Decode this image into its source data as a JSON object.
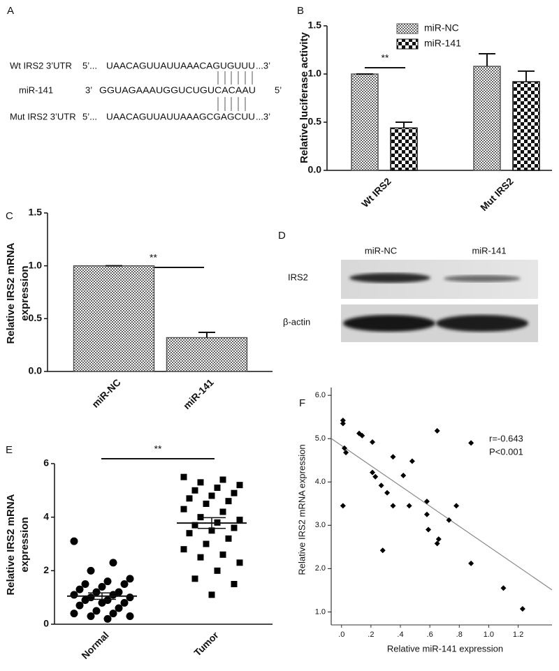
{
  "sequence_panel": {
    "panel": "A",
    "rows": [
      {
        "label": "Wt IRS2 3’UTR",
        "start": "5’...",
        "sequence": "UAACAGUUAUUAAACAGUGUUU",
        "end": "...3’"
      },
      {
        "label": "miR-141",
        "start": "3’",
        "sequence": "GGUAGAAAUGGUCUGUCACAAU",
        "end": "5’"
      },
      {
        "label": "Mut IRS2 3’UTR",
        "start": "5’...",
        "sequence": "UAACAGUUAUUAAAGCGAGCUU",
        "end": "...3’"
      }
    ]
  },
  "blot_panel": {
    "panel": "D",
    "lanes": [
      "miR-NC",
      "miR-141"
    ],
    "proteins": [
      "IRS2",
      "β-actin"
    ]
  },
  "chart_data": [
    {
      "type": "bar",
      "panel": "B",
      "ylabel": [
        "Relative luciferase activity"
      ],
      "categories": [
        "Wt IRS2",
        "Mut IRS2"
      ],
      "series": [
        {
          "name": "miR-NC",
          "color": "#555555",
          "fill_pattern": "fine",
          "values": [
            1.0,
            1.08
          ],
          "errors": [
            0,
            0.13
          ]
        },
        {
          "name": "miR-141",
          "color": "#111111",
          "fill_pattern": "coarse",
          "values": [
            0.44,
            0.92
          ],
          "errors": [
            0.06,
            0.11
          ]
        }
      ],
      "ylim": [
        0,
        1.5
      ],
      "yticks": [
        {
          "value": 0,
          "label": "0.0"
        },
        {
          "value": 0.5,
          "label": "0.5"
        },
        {
          "value": 1.0,
          "label": "1.0"
        },
        {
          "value": 1.5,
          "label": "1.5"
        }
      ],
      "significance": "**",
      "legend": "top"
    },
    {
      "type": "bar",
      "panel": "C",
      "ylabel": [
        "Relative IRS2 mRNA",
        "expression"
      ],
      "categories": [
        "miR-NC",
        "miR-141"
      ],
      "series": [
        {
          "color": "#555555",
          "fill_pattern": "fine",
          "values": [
            1.0,
            0.32
          ],
          "errors": [
            0,
            0.05
          ]
        }
      ],
      "ylim": [
        0,
        1.5
      ],
      "yticks": [
        {
          "value": 0,
          "label": "0.0"
        },
        {
          "value": 0.5,
          "label": "0.5"
        },
        {
          "value": 1.0,
          "label": "1.0"
        },
        {
          "value": 1.5,
          "label": "1.5"
        }
      ],
      "significance": "**"
    },
    {
      "type": "dot",
      "panel": "E",
      "ylabel": [
        "Relative IRS2 mRNA",
        "expression"
      ],
      "categories": [
        "Normal",
        "Tumor"
      ],
      "markers": [
        "circle",
        "square"
      ],
      "color": "#000000",
      "values": [
        [
          3.1,
          2.3,
          2.0,
          1.7,
          1.6,
          1.5,
          1.5,
          1.4,
          1.3,
          1.2,
          1.2,
          1.1,
          1.1,
          1.0,
          1.0,
          0.9,
          0.9,
          0.8,
          0.8,
          0.7,
          0.6,
          0.5,
          0.4,
          0.4,
          0.3,
          0.3,
          0.2
        ],
        [
          5.5,
          5.4,
          5.3,
          5.2,
          5.1,
          5.0,
          4.9,
          4.8,
          4.7,
          4.6,
          4.5,
          4.3,
          4.2,
          4.0,
          3.9,
          3.8,
          3.7,
          3.6,
          3.5,
          3.4,
          3.2,
          3.0,
          2.8,
          2.6,
          2.5,
          2.3,
          2.0,
          1.7,
          1.5,
          1.1
        ]
      ],
      "means": [
        1.05,
        3.78
      ],
      "errors": [
        0.12,
        0.2
      ],
      "ylim": [
        0,
        6
      ],
      "yticks": [
        0,
        2,
        4,
        6
      ],
      "significance": "**"
    },
    {
      "type": "scatter",
      "panel": "F",
      "ylabel": [
        "Relative IRS2 mRNA expression"
      ],
      "xlabel": "Relative miR-141 expression",
      "annotations": [
        "r=-0.643",
        "P<0.001"
      ],
      "color": "#000000",
      "trend_color": "#888888",
      "x": [
        0.01,
        0.01,
        0.02,
        0.03,
        0.01,
        0.12,
        0.14,
        0.21,
        0.21,
        0.23,
        0.27,
        0.31,
        0.28,
        0.35,
        0.35,
        0.42,
        0.48,
        0.46,
        0.58,
        0.58,
        0.59,
        0.65,
        0.66,
        0.65,
        0.73,
        0.78,
        0.88,
        0.88,
        1.1,
        1.23
      ],
      "y": [
        5.42,
        5.35,
        4.78,
        4.68,
        3.45,
        5.12,
        5.07,
        4.92,
        4.22,
        4.12,
        3.92,
        3.75,
        2.42,
        4.58,
        3.45,
        4.15,
        4.48,
        3.45,
        3.55,
        3.25,
        2.9,
        5.18,
        2.68,
        2.58,
        3.12,
        3.45,
        4.9,
        2.12,
        1.55,
        1.07
      ],
      "trend": {
        "intercept": 4.84,
        "slope": -2.33
      },
      "xlim": [
        -0.07,
        1.43
      ],
      "xticks": [
        {
          "value": 0,
          "label": ".0"
        },
        {
          "value": 0.2,
          "label": ".2"
        },
        {
          "value": 0.4,
          "label": ".4"
        },
        {
          "value": 0.6,
          "label": ".6"
        },
        {
          "value": 0.8,
          "label": ".8"
        },
        {
          "value": 1.0,
          "label": "1.0"
        },
        {
          "value": 1.2,
          "label": "1.2"
        }
      ],
      "ylim": [
        0.7,
        6.18
      ],
      "yticks": [
        {
          "value": 1,
          "label": "1.0"
        },
        {
          "value": 2,
          "label": "2.0"
        },
        {
          "value": 3,
          "label": "3.0"
        },
        {
          "value": 4,
          "label": "4.0"
        },
        {
          "value": 5,
          "label": "5.0"
        },
        {
          "value": 6,
          "label": "6.0"
        }
      ]
    }
  ]
}
